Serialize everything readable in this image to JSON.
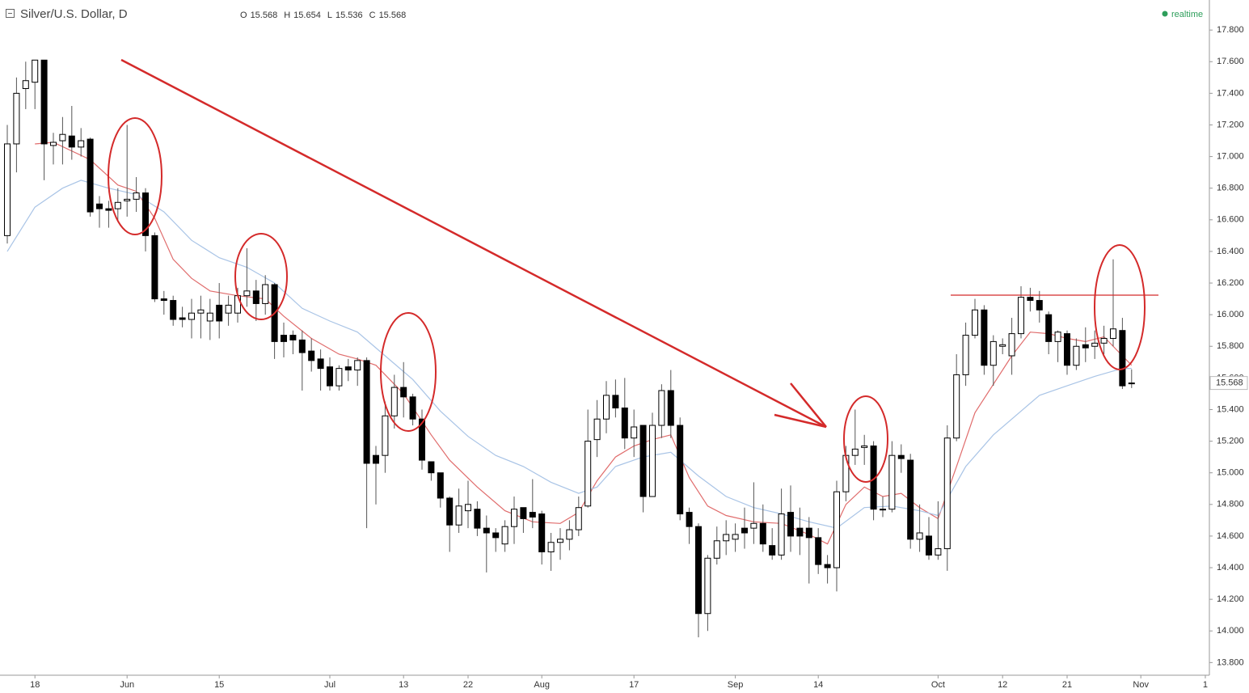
{
  "chart_data": {
    "type": "candlestick",
    "title": "Silver/U.S. Dollar, D",
    "ohlc": [
      {
        "label": "O",
        "value": 15.568
      },
      {
        "label": "H",
        "value": 15.654
      },
      {
        "label": "L",
        "value": 15.536
      },
      {
        "label": "C",
        "value": 15.568
      }
    ],
    "status": "realtime",
    "up_color": "#ffffff",
    "down_color": "#000000",
    "xlim": [
      -0.79,
      130.44
    ],
    "xticks": [
      {
        "value": 3,
        "label": "18"
      },
      {
        "value": 13,
        "label": "Jun"
      },
      {
        "value": 23,
        "label": "15"
      },
      {
        "value": 35,
        "label": "Jul"
      },
      {
        "value": 43,
        "label": "13"
      },
      {
        "value": 50,
        "label": "22"
      },
      {
        "value": 58,
        "label": "Aug"
      },
      {
        "value": 68,
        "label": "17"
      },
      {
        "value": 79,
        "label": "Sep"
      },
      {
        "value": 88,
        "label": "14"
      },
      {
        "value": 101,
        "label": "Oct"
      },
      {
        "value": 108,
        "label": "12"
      },
      {
        "value": 115,
        "label": "21"
      },
      {
        "value": 123,
        "label": "Nov"
      },
      {
        "value": 130,
        "label": "1"
      }
    ],
    "ylim": [
      13.72,
      17.99
    ],
    "yticks": [
      {
        "value": 13.8,
        "label": "13.800"
      },
      {
        "value": 14.0,
        "label": "14.000"
      },
      {
        "value": 14.2,
        "label": "14.200"
      },
      {
        "value": 14.4,
        "label": "14.400"
      },
      {
        "value": 14.6,
        "label": "14.600"
      },
      {
        "value": 14.8,
        "label": "14.800"
      },
      {
        "value": 15.0,
        "label": "15.000"
      },
      {
        "value": 15.2,
        "label": "15.200"
      },
      {
        "value": 15.4,
        "label": "15.400"
      },
      {
        "value": 15.6,
        "label": "15.600"
      },
      {
        "value": 15.8,
        "label": "15.800"
      },
      {
        "value": 16.0,
        "label": "16.000"
      },
      {
        "value": 16.2,
        "label": "16.200"
      },
      {
        "value": 16.4,
        "label": "16.400"
      },
      {
        "value": 16.6,
        "label": "16.600"
      },
      {
        "value": 16.8,
        "label": "16.800"
      },
      {
        "value": 17.0,
        "label": "17.000"
      },
      {
        "value": 17.2,
        "label": "17.200"
      },
      {
        "value": 17.4,
        "label": "17.400"
      },
      {
        "value": 17.6,
        "label": "17.600"
      },
      {
        "value": 17.8,
        "label": "17.800"
      }
    ],
    "open": [
      16.5,
      17.08,
      17.43,
      17.47,
      17.61,
      17.07,
      17.1,
      17.13,
      17.06,
      17.11,
      16.7,
      16.67,
      16.67,
      16.72,
      16.73,
      16.77,
      16.5,
      16.1,
      16.09,
      15.98,
      15.97,
      16.01,
      15.96,
      16.06,
      16.01,
      16.01,
      16.12,
      16.15,
      16.07,
      16.19,
      15.87,
      15.87,
      15.84,
      15.77,
      15.72,
      15.67,
      15.55,
      15.67,
      15.65,
      15.71,
      15.11,
      15.11,
      15.36,
      15.54,
      15.48,
      15.34,
      15.07,
      15.0,
      14.84,
      14.67,
      14.76,
      14.77,
      14.65,
      14.62,
      14.55,
      14.66,
      14.78,
      14.75,
      14.74,
      14.5,
      14.56,
      14.58,
      14.64,
      14.79,
      15.21,
      15.34,
      15.49,
      15.41,
      15.22,
      15.3,
      14.85,
      15.3,
      15.52,
      15.3,
      14.75,
      14.66,
      14.11,
      14.46,
      14.57,
      14.58,
      14.65,
      14.65,
      14.68,
      14.54,
      14.48,
      14.75,
      14.65,
      14.65,
      14.59,
      14.42,
      14.4,
      14.88,
      15.11,
      15.16,
      15.17,
      14.77,
      14.77,
      15.11,
      15.08,
      14.58,
      14.6,
      14.48,
      14.52,
      15.22,
      15.62,
      15.87,
      16.03,
      15.68,
      15.8,
      15.74,
      15.88,
      16.11,
      16.09,
      16.0,
      15.83,
      15.88,
      15.68,
      15.81,
      15.8,
      15.82,
      15.85,
      15.9,
      15.568
    ],
    "high": [
      17.2,
      17.5,
      17.6,
      17.61,
      17.61,
      17.15,
      17.25,
      17.32,
      17.18,
      17.12,
      16.75,
      16.72,
      16.8,
      17.2,
      16.87,
      16.8,
      16.52,
      16.15,
      16.12,
      16.05,
      16.1,
      16.12,
      16.1,
      16.2,
      16.12,
      16.17,
      16.42,
      16.22,
      16.25,
      16.2,
      15.95,
      15.9,
      15.9,
      15.85,
      15.78,
      15.73,
      15.68,
      15.72,
      15.73,
      15.73,
      15.17,
      15.45,
      15.62,
      15.7,
      15.5,
      15.4,
      15.07,
      15.0,
      14.85,
      14.9,
      14.95,
      14.82,
      14.73,
      14.65,
      14.7,
      14.85,
      14.78,
      14.96,
      14.76,
      14.62,
      14.65,
      14.7,
      14.85,
      15.4,
      15.46,
      15.58,
      15.59,
      15.6,
      15.4,
      15.3,
      15.38,
      15.56,
      15.65,
      15.35,
      14.78,
      14.68,
      14.48,
      14.66,
      14.7,
      14.68,
      14.78,
      14.94,
      14.8,
      14.65,
      14.9,
      14.92,
      14.78,
      14.72,
      14.65,
      14.48,
      14.95,
      15.17,
      15.4,
      15.24,
      15.2,
      14.85,
      15.2,
      15.18,
      15.12,
      14.8,
      14.72,
      14.82,
      15.3,
      15.75,
      15.95,
      16.1,
      16.06,
      15.87,
      15.85,
      15.98,
      16.18,
      16.17,
      16.15,
      16.02,
      15.9,
      15.9,
      15.85,
      15.92,
      15.9,
      15.93,
      16.35,
      15.98,
      15.654
    ],
    "low": [
      16.45,
      16.9,
      17.3,
      17.3,
      16.85,
      16.95,
      16.95,
      16.98,
      17.0,
      16.62,
      16.55,
      16.55,
      16.6,
      16.62,
      16.65,
      16.4,
      16.08,
      16.0,
      15.93,
      15.92,
      15.85,
      15.85,
      15.84,
      15.85,
      15.93,
      15.95,
      16.05,
      15.96,
      16.0,
      15.72,
      15.73,
      15.75,
      15.52,
      15.64,
      15.52,
      15.52,
      15.52,
      15.58,
      15.55,
      14.65,
      14.8,
      15.0,
      15.28,
      15.35,
      15.3,
      15.02,
      14.95,
      14.78,
      14.5,
      14.62,
      14.65,
      14.6,
      14.37,
      14.5,
      14.5,
      14.55,
      14.62,
      14.65,
      14.42,
      14.38,
      14.45,
      14.51,
      14.6,
      14.78,
      15.1,
      15.25,
      15.35,
      15.15,
      15.1,
      14.75,
      14.85,
      15.22,
      15.22,
      14.7,
      14.55,
      13.96,
      14.0,
      14.42,
      14.48,
      14.5,
      14.52,
      14.55,
      14.5,
      14.45,
      14.45,
      14.5,
      14.48,
      14.3,
      14.36,
      14.3,
      14.25,
      14.82,
      15.05,
      15.05,
      14.7,
      14.72,
      14.75,
      15.0,
      14.52,
      14.5,
      14.45,
      14.45,
      14.38,
      15.2,
      15.55,
      15.85,
      15.62,
      15.55,
      15.75,
      15.62,
      15.85,
      16.02,
      15.95,
      15.75,
      15.7,
      15.62,
      15.65,
      15.7,
      15.72,
      15.75,
      15.8,
      15.53,
      15.536
    ],
    "close": [
      17.08,
      17.4,
      17.48,
      17.61,
      17.08,
      17.09,
      17.14,
      17.06,
      17.1,
      16.65,
      16.67,
      16.66,
      16.71,
      16.73,
      16.77,
      16.5,
      16.1,
      16.09,
      15.97,
      15.97,
      16.01,
      16.03,
      16.01,
      15.96,
      16.06,
      16.12,
      16.15,
      16.07,
      16.19,
      15.83,
      15.83,
      15.84,
      15.76,
      15.71,
      15.66,
      15.55,
      15.66,
      15.65,
      15.71,
      15.06,
      15.06,
      15.36,
      15.54,
      15.48,
      15.34,
      15.08,
      15.0,
      14.84,
      14.67,
      14.79,
      14.8,
      14.65,
      14.62,
      14.59,
      14.66,
      14.77,
      14.71,
      14.72,
      14.5,
      14.56,
      14.58,
      14.64,
      14.78,
      15.2,
      15.34,
      15.49,
      15.41,
      15.22,
      15.29,
      14.85,
      15.3,
      15.52,
      15.3,
      14.74,
      14.66,
      14.11,
      14.46,
      14.57,
      14.61,
      14.61,
      14.62,
      14.68,
      14.55,
      14.48,
      14.74,
      14.6,
      14.6,
      14.59,
      14.42,
      14.4,
      14.88,
      15.11,
      15.15,
      15.17,
      14.77,
      14.77,
      15.11,
      15.09,
      14.58,
      14.62,
      14.48,
      14.52,
      15.22,
      15.62,
      15.87,
      16.03,
      15.68,
      15.83,
      15.81,
      15.88,
      16.11,
      16.09,
      16.03,
      15.83,
      15.89,
      15.68,
      15.8,
      15.79,
      15.82,
      15.85,
      15.91,
      15.55,
      15.568
    ],
    "lines": [
      {
        "color": "#e06c6c",
        "x": [
          3,
          5,
          9,
          12,
          14,
          16,
          18,
          20,
          22,
          25,
          28,
          30,
          33,
          36,
          38,
          40,
          43,
          46,
          48,
          51,
          54,
          57,
          60,
          62,
          64,
          66,
          68,
          70,
          72,
          74,
          76,
          78,
          81,
          84,
          87,
          89,
          91,
          93,
          95,
          97,
          99,
          101,
          103,
          105,
          107,
          109,
          111,
          113,
          115,
          117,
          119,
          121,
          122
        ],
        "values": [
          17.08,
          17.09,
          16.98,
          16.82,
          16.78,
          16.61,
          16.35,
          16.23,
          16.15,
          16.12,
          16.1,
          15.99,
          15.85,
          15.75,
          15.72,
          15.68,
          15.5,
          15.24,
          15.08,
          14.91,
          14.76,
          14.69,
          14.68,
          14.75,
          14.95,
          15.1,
          15.17,
          15.21,
          15.24,
          14.97,
          14.79,
          14.73,
          14.69,
          14.68,
          14.61,
          14.55,
          14.8,
          14.91,
          14.85,
          14.87,
          14.78,
          14.71,
          15.04,
          15.38,
          15.56,
          15.74,
          15.89,
          15.88,
          15.85,
          15.83,
          15.86,
          15.74,
          15.68
        ]
      },
      {
        "color": "#a9c4e6",
        "x": [
          0,
          3,
          6,
          8,
          11,
          14,
          17,
          20,
          23,
          26,
          29,
          32,
          35,
          38,
          41,
          44,
          47,
          50,
          53,
          56,
          59,
          62,
          64,
          66,
          69,
          72,
          75,
          78,
          81,
          84,
          87,
          90,
          93,
          96,
          99,
          101,
          104,
          107,
          110,
          112,
          115,
          118,
          121,
          122
        ],
        "values": [
          16.4,
          16.68,
          16.8,
          16.85,
          16.8,
          16.76,
          16.65,
          16.47,
          16.36,
          16.3,
          16.2,
          16.04,
          15.96,
          15.89,
          15.74,
          15.59,
          15.39,
          15.23,
          15.11,
          15.04,
          14.94,
          14.87,
          14.91,
          15.04,
          15.1,
          15.13,
          14.98,
          14.85,
          14.78,
          14.74,
          14.69,
          14.65,
          14.78,
          14.79,
          14.76,
          14.73,
          15.04,
          15.24,
          15.39,
          15.49,
          15.55,
          15.61,
          15.66,
          15.66
        ]
      }
    ]
  }
}
